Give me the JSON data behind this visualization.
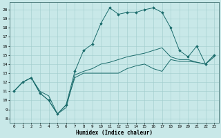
{
  "title": "",
  "xlabel": "Humidex (Indice chaleur)",
  "background_color": "#c8e8e8",
  "line_color": "#1a6b6b",
  "x_ticks": [
    0,
    1,
    2,
    3,
    4,
    5,
    6,
    7,
    8,
    9,
    10,
    11,
    12,
    13,
    14,
    15,
    16,
    17,
    18,
    19,
    20,
    21,
    22,
    23
  ],
  "y_ticks": [
    8,
    9,
    10,
    11,
    12,
    13,
    14,
    15,
    16,
    17,
    18,
    19,
    20
  ],
  "xlim": [
    -0.5,
    23.5
  ],
  "ylim": [
    7.5,
    20.8
  ],
  "lines": [
    {
      "x": [
        0,
        1,
        2,
        3,
        4,
        5,
        6,
        7,
        8,
        9,
        10,
        11,
        12,
        13,
        14,
        15,
        16,
        17,
        18,
        19,
        20,
        21,
        22,
        23
      ],
      "y": [
        11,
        12,
        12.5,
        10.8,
        10,
        8.5,
        9.5,
        12.5,
        13,
        13,
        13,
        13,
        13,
        13.5,
        13.8,
        14,
        13.5,
        13.2,
        14.5,
        14.3,
        14.3,
        14.2,
        14.0,
        14.8
      ],
      "marker": false
    },
    {
      "x": [
        0,
        1,
        2,
        3,
        4,
        5,
        6,
        7,
        8,
        9,
        10,
        11,
        12,
        13,
        14,
        15,
        16,
        17,
        18,
        19,
        20,
        21,
        22,
        23
      ],
      "y": [
        11,
        12,
        12.5,
        11,
        10.5,
        8.5,
        9.2,
        12.8,
        13.2,
        13.5,
        14,
        14.2,
        14.5,
        14.8,
        15,
        15.2,
        15.5,
        15.8,
        14.8,
        14.5,
        14.5,
        14.2,
        14.0,
        15.0
      ],
      "marker": false
    },
    {
      "x": [
        0,
        1,
        2,
        3,
        4,
        5,
        6,
        7,
        8,
        9,
        10,
        11,
        12,
        13,
        14,
        15,
        16,
        17,
        18,
        19,
        20,
        21,
        22,
        23
      ],
      "y": [
        11,
        12,
        12.5,
        10.8,
        10,
        8.5,
        9.5,
        13.2,
        15.5,
        16.2,
        18.5,
        20.2,
        19.5,
        19.7,
        19.7,
        20.0,
        20.2,
        19.7,
        18.0,
        15.5,
        14.8,
        16.0,
        14.0,
        15.0
      ],
      "marker": true
    }
  ],
  "figwidth": 3.2,
  "figheight": 2.0,
  "dpi": 100
}
